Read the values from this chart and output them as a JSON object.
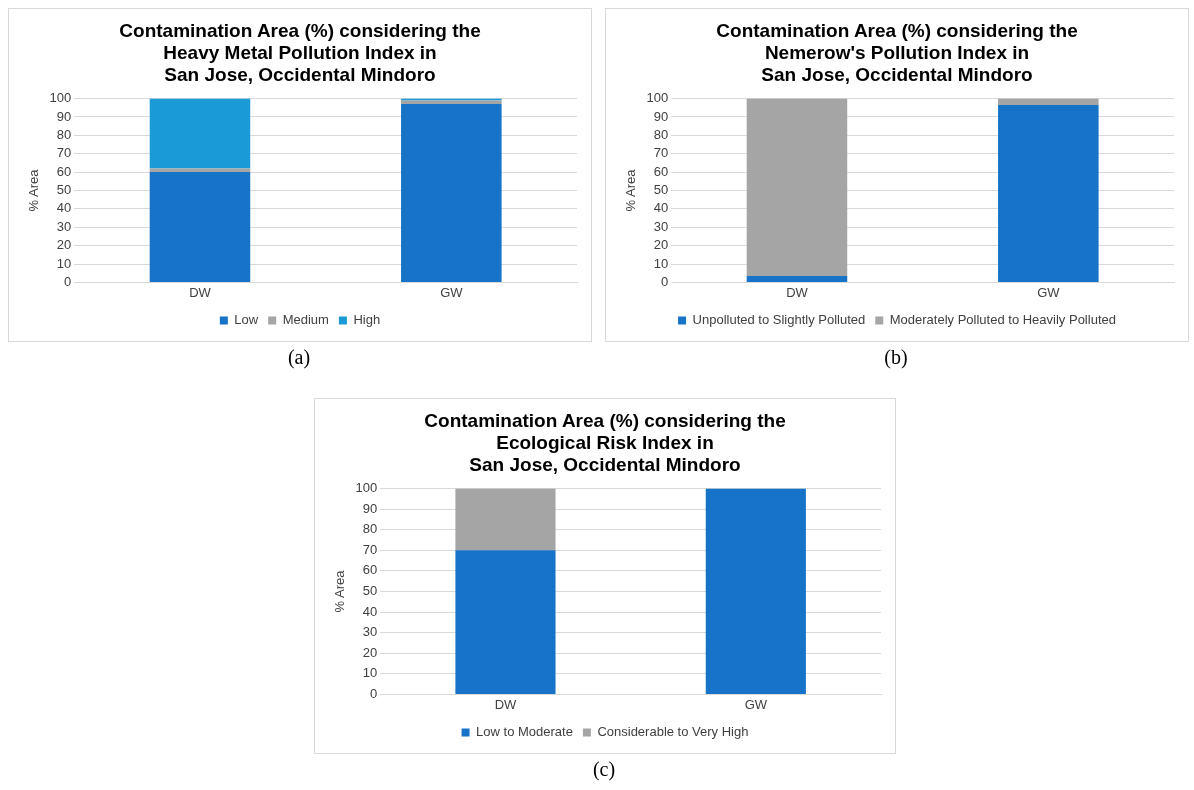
{
  "chart_data": [
    {
      "type": "bar",
      "title": "Contamination Area (%) considering the\nHeavy Metal Pollution Index in\nSan Jose, Occidental Mindoro",
      "ylabel": "% Area",
      "categories": [
        "DW",
        "GW"
      ],
      "stacked": true,
      "series": [
        {
          "name": "Low",
          "color": "#1673c8",
          "values": [
            60,
            97
          ]
        },
        {
          "name": "Medium",
          "color": "#a5a5a5",
          "values": [
            2,
            2
          ]
        },
        {
          "name": "High",
          "color": "#1a9ad6",
          "values": [
            38,
            1
          ]
        }
      ],
      "ylim": [
        0,
        100
      ],
      "yticks": [
        0,
        10,
        20,
        30,
        40,
        50,
        60,
        70,
        80,
        90,
        100
      ],
      "grid": "y",
      "legend": "bottom",
      "annotations": [
        "(a)"
      ]
    },
    {
      "type": "bar",
      "title": "Contamination Area (%) considering the\nNemerow's Pollution Index in\nSan Jose, Occidental Mindoro",
      "ylabel": "% Area",
      "categories": [
        "DW",
        "GW"
      ],
      "stacked": true,
      "series": [
        {
          "name": "Unpolluted to Slightly Polluted",
          "color": "#1673c8",
          "values": [
            3.5,
            96.5
          ]
        },
        {
          "name": "Moderately Polluted to Heavily Polluted",
          "color": "#a5a5a5",
          "values": [
            96.5,
            3.5
          ]
        }
      ],
      "ylim": [
        0,
        100
      ],
      "yticks": [
        0,
        10,
        20,
        30,
        40,
        50,
        60,
        70,
        80,
        90,
        100
      ],
      "grid": "y",
      "legend": "bottom",
      "annotations": [
        "(b)"
      ]
    },
    {
      "type": "bar",
      "title": "Contamination Area (%) considering the\nEcological Risk Index in\nSan Jose, Occidental Mindoro",
      "ylabel": "% Area",
      "categories": [
        "DW",
        "GW"
      ],
      "stacked": true,
      "series": [
        {
          "name": "Low to Moderate",
          "color": "#1673c8",
          "values": [
            70,
            100
          ]
        },
        {
          "name": "Considerable to Very High",
          "color": "#a5a5a5",
          "values": [
            30,
            0
          ]
        }
      ],
      "ylim": [
        0,
        100
      ],
      "yticks": [
        0,
        10,
        20,
        30,
        40,
        50,
        60,
        70,
        80,
        90,
        100
      ],
      "grid": "y",
      "legend": "bottom",
      "annotations": [
        "(c)"
      ]
    }
  ]
}
